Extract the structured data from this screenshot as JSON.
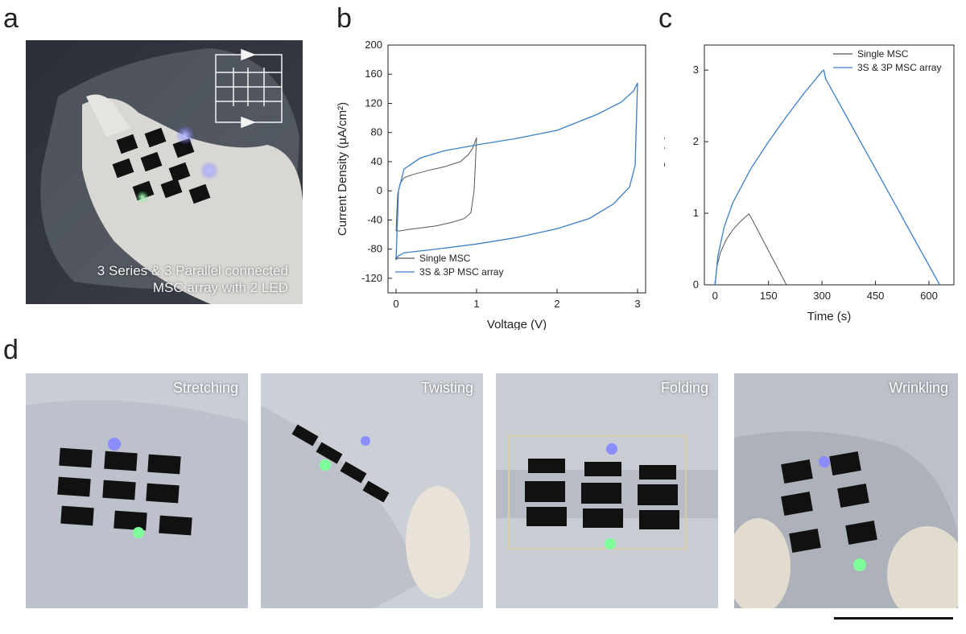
{
  "panels": {
    "a": {
      "letter": "a",
      "caption_line1": "3 Series & 3 Parallel connected",
      "caption_line2": "MSC array with 2 LED"
    },
    "b": {
      "letter": "b"
    },
    "c": {
      "letter": "c"
    },
    "d": {
      "letter": "d",
      "photos": [
        {
          "label": "Stretching"
        },
        {
          "label": "Twisting"
        },
        {
          "label": "Folding"
        },
        {
          "label": "Wrinkling"
        }
      ]
    }
  },
  "colors": {
    "single_msc": "#555555",
    "array": "#3a7fc9",
    "led_blue": "#7a7cff",
    "led_green": "#5cff7a"
  },
  "chart_data": [
    {
      "type": "line",
      "xlabel": "Voltage (V)",
      "ylabel": "Current Density (μA/cm²)",
      "xlim": [
        -0.1,
        3.1
      ],
      "ylim": [
        -140,
        200
      ],
      "xticks": [
        0,
        1,
        2,
        3
      ],
      "yticks": [
        -120,
        -80,
        -40,
        0,
        40,
        80,
        120,
        160,
        200
      ],
      "legend_position": "bottom-left",
      "series": [
        {
          "name": "Single MSC",
          "x": [
            0,
            0.02,
            0.05,
            0.1,
            0.2,
            0.4,
            0.6,
            0.8,
            0.9,
            0.95,
            1.0,
            0.97,
            0.93,
            0.85,
            0.7,
            0.5,
            0.3,
            0.15,
            0.05,
            0.0
          ],
          "y": [
            -55,
            -5,
            10,
            18,
            22,
            28,
            33,
            40,
            50,
            58,
            73,
            1,
            -30,
            -38,
            -43,
            -48,
            -51,
            -53,
            -55,
            -55
          ]
        },
        {
          "name": "3S & 3P MSC array",
          "x": [
            0,
            0.03,
            0.1,
            0.3,
            0.6,
            1.0,
            1.5,
            2.0,
            2.5,
            2.8,
            2.95,
            3.0,
            2.97,
            2.9,
            2.7,
            2.4,
            2.0,
            1.5,
            1.0,
            0.5,
            0.1,
            0.02,
            0.0
          ],
          "y": [
            -95,
            0,
            30,
            45,
            55,
            63,
            72,
            83,
            105,
            122,
            137,
            148,
            35,
            5,
            -18,
            -38,
            -52,
            -64,
            -73,
            -80,
            -85,
            -90,
            -95
          ]
        }
      ]
    },
    {
      "type": "line",
      "xlabel": "Time (s)",
      "ylabel": "Voltage (V)",
      "xlim": [
        -30,
        670
      ],
      "ylim": [
        0,
        3.35
      ],
      "xticks": [
        0,
        150,
        300,
        450,
        600
      ],
      "yticks": [
        0,
        1,
        2,
        3
      ],
      "legend_position": "top-center",
      "series": [
        {
          "name": "Single MSC",
          "x": [
            0,
            5,
            15,
            30,
            50,
            70,
            90,
            95,
            100,
            200
          ],
          "y": [
            0,
            0.25,
            0.45,
            0.62,
            0.77,
            0.88,
            0.97,
            0.99,
            0.95,
            0
          ]
        },
        {
          "name": "3S & 3P MSC array",
          "x": [
            0,
            8,
            25,
            50,
            100,
            150,
            200,
            250,
            300,
            305,
            310,
            630
          ],
          "y": [
            0,
            0.4,
            0.8,
            1.15,
            1.62,
            2.0,
            2.35,
            2.68,
            2.98,
            3.0,
            2.88,
            0
          ]
        }
      ]
    }
  ]
}
